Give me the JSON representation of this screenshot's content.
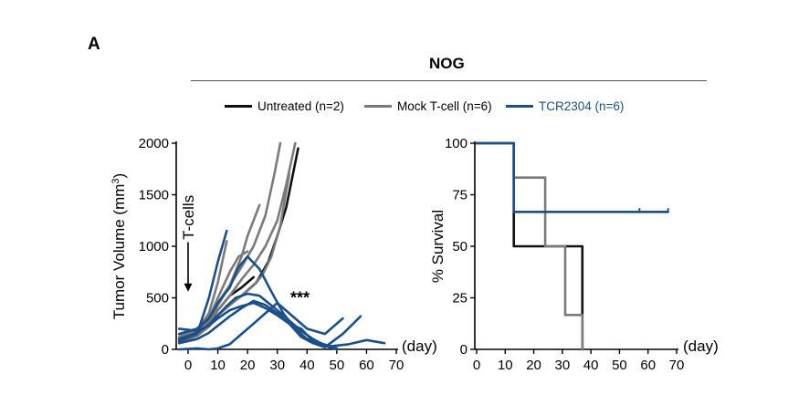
{
  "panel_label": "A",
  "group_title": "NOG",
  "legend": [
    {
      "label": "Untreated (n=2)",
      "color": "#111111"
    },
    {
      "label": "Mock T-cell (n=6)",
      "color": "#7a7a7a"
    },
    {
      "label": "TCR2304 (n=6)",
      "color": "#1c4f8a"
    }
  ],
  "chart_data": [
    {
      "type": "line",
      "ylabel": "Tumor Volume (mm3)",
      "ylabel_main": "Tumor Volume (mm",
      "ylabel_sup": "3",
      "ylabel_close": ")",
      "xlabel": "(day)",
      "xlim": [
        0,
        70
      ],
      "ylim": [
        0,
        2000
      ],
      "xticks": [
        0,
        10,
        20,
        30,
        40,
        50,
        60,
        70
      ],
      "yticks": [
        0,
        500,
        1000,
        1500,
        2000
      ],
      "annotations": [
        {
          "text": "T-cells",
          "x": 0,
          "y": 1150,
          "kind": "arrow-down"
        },
        {
          "text": "***",
          "x": 35,
          "y": 500
        }
      ],
      "series": [
        {
          "group": "Untreated",
          "color": "#111111",
          "x": [
            -3,
            3,
            7,
            10,
            14,
            18,
            23,
            27,
            30,
            33,
            37
          ],
          "y": [
            150,
            200,
            260,
            330,
            430,
            520,
            650,
            850,
            1100,
            1380,
            1950
          ]
        },
        {
          "group": "Untreated",
          "color": "#111111",
          "x": [
            -3,
            3,
            7,
            10,
            14,
            18,
            22
          ],
          "y": [
            100,
            160,
            250,
            380,
            520,
            600,
            700
          ]
        },
        {
          "group": "Mock T-cell",
          "color": "#7a7a7a",
          "x": [
            -3,
            3,
            7,
            10,
            14,
            18,
            22,
            26,
            29,
            31
          ],
          "y": [
            120,
            200,
            320,
            450,
            620,
            800,
            1000,
            1300,
            1700,
            2000
          ]
        },
        {
          "group": "Mock T-cell",
          "color": "#7a7a7a",
          "x": [
            -3,
            3,
            7,
            10,
            14,
            18,
            22,
            26,
            30,
            33,
            36
          ],
          "y": [
            90,
            160,
            260,
            380,
            520,
            680,
            820,
            1000,
            1250,
            1600,
            2000
          ]
        },
        {
          "group": "Mock T-cell",
          "color": "#7a7a7a",
          "x": [
            -3,
            3,
            7,
            10,
            14,
            18,
            20,
            24
          ],
          "y": [
            80,
            150,
            260,
            430,
            620,
            900,
            1100,
            1400
          ]
        },
        {
          "group": "Mock T-cell",
          "color": "#7a7a7a",
          "x": [
            -3,
            3,
            7,
            10,
            13
          ],
          "y": [
            110,
            180,
            350,
            650,
            1050
          ]
        },
        {
          "group": "Mock T-cell",
          "color": "#7a7a7a",
          "x": [
            -3,
            3,
            7,
            10,
            14,
            18,
            22,
            25,
            28,
            31,
            34
          ],
          "y": [
            70,
            130,
            220,
            330,
            430,
            520,
            620,
            720,
            900,
            1200,
            1700
          ]
        },
        {
          "group": "Mock T-cell",
          "color": "#7a7a7a",
          "x": [
            -3,
            3,
            7,
            10,
            14,
            17,
            20
          ],
          "y": [
            60,
            140,
            300,
            500,
            750,
            900,
            950
          ]
        },
        {
          "group": "TCR2304",
          "color": "#1c4f8a",
          "x": [
            -3,
            3,
            7,
            10,
            13,
            16,
            20,
            24,
            27,
            30,
            34,
            38,
            42,
            46,
            50
          ],
          "y": [
            100,
            160,
            240,
            330,
            420,
            500,
            540,
            520,
            450,
            380,
            280,
            180,
            100,
            40,
            10
          ]
        },
        {
          "group": "TCR2304",
          "color": "#1c4f8a",
          "x": [
            -3,
            3,
            7,
            10,
            14,
            17,
            20,
            24,
            28,
            32,
            36,
            40,
            45,
            50
          ],
          "y": [
            150,
            200,
            300,
            450,
            600,
            800,
            900,
            780,
            560,
            350,
            200,
            100,
            40,
            0
          ]
        },
        {
          "group": "TCR2304",
          "color": "#1c4f8a",
          "x": [
            -3,
            3,
            7,
            10,
            13
          ],
          "y": [
            80,
            150,
            500,
            850,
            1150
          ]
        },
        {
          "group": "TCR2304",
          "color": "#1c4f8a",
          "x": [
            -3,
            3,
            7,
            10,
            14,
            18,
            22,
            26,
            30,
            34,
            38,
            42,
            46,
            52,
            58
          ],
          "y": [
            60,
            100,
            160,
            230,
            320,
            400,
            470,
            430,
            350,
            250,
            120,
            60,
            20,
            150,
            320
          ]
        },
        {
          "group": "TCR2304",
          "color": "#1c4f8a",
          "x": [
            -3,
            3,
            7,
            10,
            14,
            18,
            22,
            26,
            30,
            34,
            38,
            42,
            48,
            54,
            60,
            66
          ],
          "y": [
            200,
            180,
            230,
            300,
            380,
            420,
            450,
            400,
            330,
            250,
            200,
            80,
            30,
            50,
            90,
            60
          ]
        },
        {
          "group": "TCR2304",
          "color": "#1c4f8a",
          "x": [
            -3,
            3,
            7,
            10,
            14,
            18,
            22,
            26,
            30,
            34,
            40,
            46,
            52
          ],
          "y": [
            0,
            10,
            0,
            10,
            50,
            150,
            250,
            350,
            450,
            350,
            200,
            150,
            300
          ]
        }
      ]
    },
    {
      "type": "line",
      "step": true,
      "ylabel": "% Survival",
      "xlabel": "(day)",
      "xlim": [
        0,
        70
      ],
      "ylim": [
        0,
        100
      ],
      "xticks": [
        0,
        10,
        20,
        30,
        40,
        50,
        60,
        70
      ],
      "yticks": [
        0,
        25,
        50,
        75,
        100
      ],
      "series": [
        {
          "group": "Untreated",
          "color": "#111111",
          "x": [
            0,
            13,
            13,
            37,
            37
          ],
          "y": [
            100,
            100,
            50,
            50,
            0
          ]
        },
        {
          "group": "Mock T-cell",
          "color": "#7a7a7a",
          "x": [
            0,
            13,
            13,
            24,
            24,
            31,
            31,
            37,
            37
          ],
          "y": [
            100,
            100,
            83.3,
            83.3,
            50,
            50,
            16.7,
            16.7,
            0
          ]
        },
        {
          "group": "TCR2304",
          "color": "#1c4f8a",
          "x": [
            0,
            13,
            13,
            67
          ],
          "y": [
            100,
            100,
            66.7,
            66.7
          ],
          "censor_x": [
            57,
            67
          ]
        }
      ]
    }
  ]
}
